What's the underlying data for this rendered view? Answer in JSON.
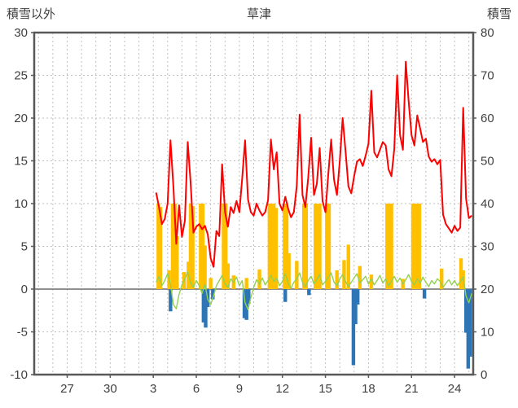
{
  "chart_data": {
    "type": "mixed",
    "title": "草津",
    "left_axis": {
      "title": "積雪以外",
      "min": -10,
      "max": 30,
      "ticks": [
        30,
        25,
        20,
        15,
        10,
        5,
        0,
        -5,
        -10
      ]
    },
    "right_axis": {
      "title": "積雪",
      "min": 0,
      "max": 80,
      "ticks": [
        80,
        70,
        60,
        50,
        40,
        30,
        20,
        10,
        0
      ]
    },
    "x_axis": {
      "min": -0.3,
      "max": 30.3,
      "grid_step": 1,
      "tick_positions": [
        2,
        5,
        8,
        11,
        14,
        17,
        20,
        23,
        26,
        29
      ],
      "tick_labels": [
        "27",
        "30",
        "3",
        "6",
        "9",
        "12",
        "15",
        "18",
        "21",
        "24"
      ]
    },
    "colors": {
      "grid": "#BFBFBF",
      "border": "#595959",
      "zero_line": "#808080",
      "text": "#404040"
    },
    "series": [
      {
        "name": "orange-bars",
        "type": "bar",
        "axis": "left",
        "color": "#FFC000",
        "points": [
          [
            8.35,
            10
          ],
          [
            8.5,
            9.6
          ],
          [
            9.1,
            2.2
          ],
          [
            9.35,
            10
          ],
          [
            9.5,
            10
          ],
          [
            9.65,
            6.2
          ],
          [
            10.15,
            2.0
          ],
          [
            10.45,
            3.2
          ],
          [
            10.6,
            10
          ],
          [
            10.75,
            9.7
          ],
          [
            11.3,
            10
          ],
          [
            11.45,
            10
          ],
          [
            11.6,
            5.1
          ],
          [
            12.0,
            1.3
          ],
          [
            12.9,
            10
          ],
          [
            13.05,
            10
          ],
          [
            13.2,
            3.0
          ],
          [
            13.6,
            1.6
          ],
          [
            14.5,
            1.3
          ],
          [
            15.4,
            2.3
          ],
          [
            16.1,
            10
          ],
          [
            16.25,
            10
          ],
          [
            16.4,
            10
          ],
          [
            16.55,
            9.5
          ],
          [
            17.15,
            10
          ],
          [
            17.3,
            10
          ],
          [
            17.45,
            4.2
          ],
          [
            18.0,
            3.3
          ],
          [
            18.5,
            10
          ],
          [
            18.65,
            10
          ],
          [
            19.3,
            10
          ],
          [
            19.45,
            10
          ],
          [
            19.6,
            10
          ],
          [
            20.1,
            10
          ],
          [
            20.25,
            10
          ],
          [
            20.8,
            2.2
          ],
          [
            21.3,
            3.4
          ],
          [
            21.6,
            5.2
          ],
          [
            22.4,
            2.7
          ],
          [
            23.2,
            1.7
          ],
          [
            24.3,
            10
          ],
          [
            24.45,
            10
          ],
          [
            24.6,
            10
          ],
          [
            25.4,
            1.2
          ],
          [
            26.1,
            10
          ],
          [
            26.25,
            10
          ],
          [
            26.4,
            10
          ],
          [
            26.55,
            10
          ],
          [
            28.1,
            2.4
          ],
          [
            29.45,
            3.6
          ],
          [
            29.6,
            2.2
          ]
        ]
      },
      {
        "name": "blue-bars",
        "type": "bar",
        "axis": "left",
        "color": "#2E75B6",
        "points": [
          [
            9.2,
            -2.6
          ],
          [
            11.5,
            -3.9
          ],
          [
            11.65,
            -4.5
          ],
          [
            11.8,
            -2.1
          ],
          [
            12.15,
            -1.2
          ],
          [
            14.35,
            -3.4
          ],
          [
            14.5,
            -3.6
          ],
          [
            14.65,
            -1.7
          ],
          [
            17.2,
            -1.5
          ],
          [
            18.85,
            -0.7
          ],
          [
            21.95,
            -8.9
          ],
          [
            22.1,
            -4.1
          ],
          [
            22.25,
            -1.8
          ],
          [
            26.9,
            -1.1
          ],
          [
            29.8,
            -5.1
          ],
          [
            29.95,
            -9.3
          ],
          [
            30.1,
            -7.9
          ]
        ]
      },
      {
        "name": "green-line",
        "type": "line",
        "axis": "left",
        "color": "#92D050",
        "width": 1.4,
        "x_start": 8.2,
        "x_step": 0.2,
        "values": [
          0.8,
          1.5,
          0.4,
          1.0,
          1.8,
          0.6,
          -1.8,
          -2.3,
          -0.6,
          0.5,
          1.2,
          2.0,
          0.8,
          0.2,
          1.0,
          0.4,
          -0.5,
          0.6,
          -1.2,
          -1.8,
          -0.8,
          0.4,
          1.0,
          1.6,
          0.6,
          0.2,
          1.2,
          0.8,
          1.4,
          0.4,
          1.0,
          -1.6,
          -2.4,
          -1.0,
          0.2,
          1.1,
          0.6,
          1.3,
          0.5,
          1.0,
          1.6,
          0.9,
          1.3,
          0.4,
          0.9,
          1.8,
          0.7,
          0.1,
          0.8,
          1.2,
          1.9,
          0.8,
          0.3,
          1.0,
          1.5,
          0.6,
          1.1,
          1.7,
          0.5,
          0.9,
          1.4,
          1.9,
          0.8,
          0.4,
          1.2,
          1.7,
          0.9,
          0.3,
          0.8,
          1.3,
          1.8,
          0.7,
          1.1,
          1.5,
          0.6,
          1.2,
          0.5,
          1.0,
          1.6,
          0.7,
          1.2,
          0.4,
          0.9,
          1.5,
          0.8,
          1.3,
          0.6,
          1.1,
          1.7,
          0.9,
          0.5,
          1.2,
          0.7,
          1.4,
          0.8,
          0.3,
          1.0,
          0.6,
          1.2,
          0.9,
          0.2,
          0.7,
          1.1,
          0.5,
          1.0,
          0.4,
          0.9,
          1.4,
          -0.8,
          -1.6,
          -0.5
        ]
      },
      {
        "name": "red-line",
        "type": "line",
        "axis": "right",
        "color": "#FF0000",
        "width": 2,
        "x_start": 8.2,
        "x_step": 0.2,
        "values": [
          42.6,
          39.2,
          35.2,
          36.4,
          40,
          54.8,
          44,
          30.6,
          39.6,
          32.2,
          36,
          54.4,
          45,
          33.2,
          34.6,
          35.2,
          34,
          34.8,
          32.8,
          27.2,
          25.2,
          33.6,
          32.4,
          49.2,
          38,
          34.6,
          39.2,
          37.8,
          40.6,
          38,
          46,
          54.8,
          41,
          38,
          37.2,
          40,
          38.4,
          37.2,
          38,
          40.8,
          55,
          48,
          52,
          40,
          38.4,
          41.6,
          38.8,
          36.8,
          38,
          44,
          60.8,
          42,
          39.2,
          46,
          55.4,
          42,
          44.6,
          53,
          40.6,
          38,
          47,
          55,
          45.6,
          42,
          50,
          60,
          52.4,
          44,
          42.4,
          46.4,
          49.8,
          50.4,
          48.8,
          51.2,
          54,
          66.4,
          52,
          50.8,
          52.6,
          54.4,
          53.6,
          48,
          46.4,
          52.8,
          70,
          56,
          52.6,
          73.2,
          64,
          56,
          53.6,
          60.6,
          57.6,
          54.4,
          55.2,
          51,
          49.8,
          50.4,
          49.2,
          50.2,
          37.4,
          35.2,
          34.2,
          33.2,
          34.8,
          33.6,
          34.4,
          62.4,
          41.2,
          36.6,
          37.2
        ]
      }
    ]
  }
}
